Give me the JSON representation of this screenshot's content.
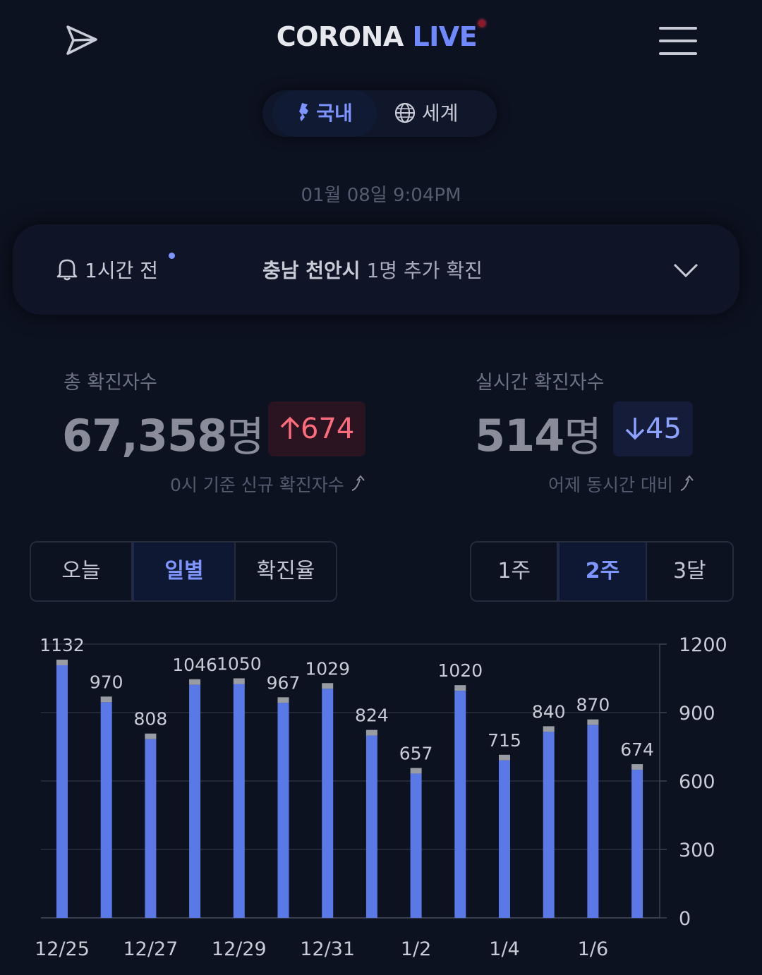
{
  "header": {
    "logo_part1": "CORONA",
    "logo_part2": "LIVE"
  },
  "region_tabs": [
    {
      "label": "국내",
      "active": true
    },
    {
      "label": "세계",
      "active": false
    }
  ],
  "update_time": "01월 08일 9:04PM",
  "notice": {
    "time": "1시간 전",
    "location": "충남 천안시",
    "message": " 1명 추가 확진"
  },
  "stats": {
    "total": {
      "label": "총 확진자수",
      "value": "67,358",
      "unit": "명",
      "change": "674",
      "change_dir": "up",
      "sub": "0시 기준 신규 확진자수"
    },
    "realtime": {
      "label": "실시간 확진자수",
      "value": "514",
      "unit": "명",
      "change": "45",
      "change_dir": "down",
      "sub": "어제 동시간 대비"
    }
  },
  "view_tabs": [
    {
      "label": "오늘",
      "active": false
    },
    {
      "label": "일별",
      "active": true
    },
    {
      "label": "확진율",
      "active": false
    }
  ],
  "range_tabs": [
    {
      "label": "1주",
      "active": false
    },
    {
      "label": "2주",
      "active": true
    },
    {
      "label": "3달",
      "active": false
    }
  ],
  "colors": {
    "bar": "#5a78e6",
    "bar_top": "#9a9ca4",
    "accent": "#7e95ff"
  },
  "chart_data": {
    "type": "bar",
    "x": [
      "12/25",
      "12/26",
      "12/27",
      "12/28",
      "12/29",
      "12/30",
      "12/31",
      "1/1",
      "1/2",
      "1/3",
      "1/4",
      "1/5",
      "1/6",
      "1/7"
    ],
    "x_tick_labels": [
      "12/25",
      "",
      "12/27",
      "",
      "12/29",
      "",
      "12/31",
      "",
      "1/2",
      "",
      "1/4",
      "",
      "1/6",
      ""
    ],
    "values": [
      1132,
      970,
      808,
      1046,
      1050,
      967,
      1029,
      824,
      657,
      1020,
      715,
      840,
      870,
      674
    ],
    "y_ticks": [
      0,
      300,
      600,
      900,
      1200
    ],
    "ylim": [
      0,
      1200
    ],
    "y_axis_side": "right",
    "grid": true,
    "stacked": true,
    "series_note": "blue base with grey cap"
  }
}
